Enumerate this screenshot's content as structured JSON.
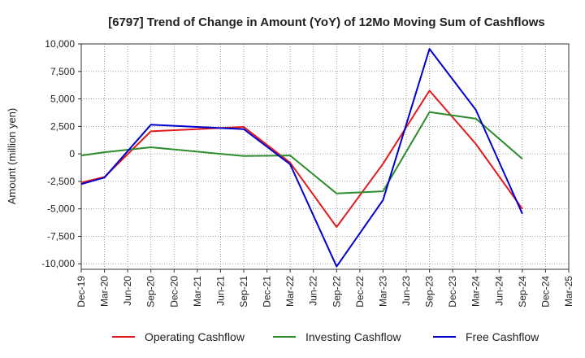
{
  "chart_data": {
    "type": "line",
    "title": "[6797]  Trend of Change in Amount (YoY) of 12Mo Moving Sum of Cashflows",
    "xlabel": "",
    "ylabel": "Amount (million yen)",
    "categories": [
      "Dec-19",
      "Mar-20",
      "Jun-20",
      "Sep-20",
      "Dec-20",
      "Mar-21",
      "Jun-21",
      "Sep-21",
      "Dec-21",
      "Mar-22",
      "Jun-22",
      "Sep-22",
      "Dec-22",
      "Mar-23",
      "Jun-23",
      "Sep-23",
      "Dec-23",
      "Mar-24",
      "Jun-24",
      "Sep-24",
      "Dec-24",
      "Mar-25"
    ],
    "ylim": [
      -10500,
      10000
    ],
    "yticks": [
      10000,
      7500,
      5000,
      2500,
      0,
      -2500,
      -5000,
      -7500,
      -10000
    ],
    "ytick_labels": [
      "10,000",
      "7,500",
      "5,000",
      "2,500",
      "0",
      "-2,500",
      "-5,000",
      "-7,500",
      "-10,000"
    ],
    "grid": true,
    "legend_position": "bottom",
    "series": [
      {
        "name": "Operating Cashflow",
        "color": "#e31a1c",
        "values": [
          -2600,
          -2100,
          null,
          2050,
          null,
          null,
          null,
          2450,
          null,
          -800,
          null,
          -6650,
          null,
          -900,
          null,
          5750,
          null,
          900,
          null,
          -5000,
          null,
          null
        ]
      },
      {
        "name": "Investing Cashflow",
        "color": "#2e8b2e",
        "values": [
          -150,
          150,
          null,
          600,
          null,
          null,
          null,
          -200,
          null,
          -150,
          null,
          -3600,
          null,
          -3400,
          null,
          3800,
          null,
          3200,
          null,
          -450,
          null,
          null
        ]
      },
      {
        "name": "Free Cashflow",
        "color": "#0000cc",
        "values": [
          -2750,
          -2150,
          null,
          2650,
          null,
          null,
          null,
          2250,
          null,
          -950,
          null,
          -10250,
          null,
          -4200,
          null,
          9550,
          null,
          4000,
          null,
          -5450,
          null,
          null
        ]
      }
    ]
  }
}
